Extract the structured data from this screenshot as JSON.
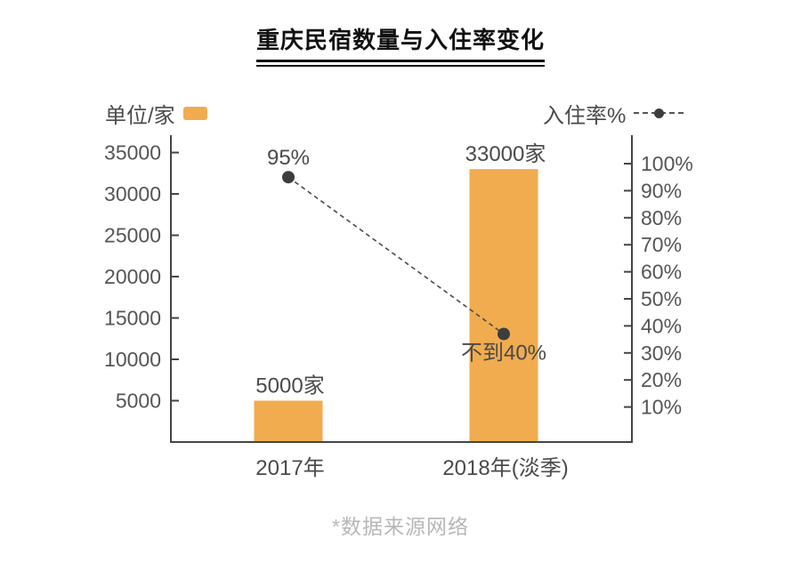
{
  "title": "重庆民宿数量与入住率变化",
  "legend": {
    "bar": {
      "label": "单位/家"
    },
    "line": {
      "label": "入住率%"
    }
  },
  "footer_note": "*数据来源网络",
  "colors": {
    "bar": "#f0ac4f",
    "marker": "#3d3d3d",
    "dashed_line": "#4a4a4a",
    "axis_line": "#454545",
    "tick_text": "#555555",
    "category_text": "#4a4a4a",
    "data_label_text": "#4a4a4a",
    "title_text": "#111111",
    "footer_text": "#b7b7b7"
  },
  "chart_data": {
    "type": "bar",
    "subtype": "dual-axis-combo-bar-line",
    "title": "重庆民宿数量与入住率变化",
    "categories": [
      "2017年",
      "2018年(淡季)"
    ],
    "series": [
      {
        "name": "单位/家",
        "type": "bar",
        "axis": "left",
        "values": [
          5000,
          33000
        ],
        "value_labels": [
          "5000家",
          "33000家"
        ],
        "color": "#f0ac4f"
      },
      {
        "name": "入住率%",
        "type": "line",
        "axis": "right",
        "values": [
          95,
          37
        ],
        "value_labels": [
          "95%",
          "不到40%"
        ],
        "value_label_positions": [
          "above",
          "below"
        ],
        "line_style": "dashed",
        "color": "#3d3d3d"
      }
    ],
    "left_axis": {
      "tick_labels": [
        "5000",
        "10000",
        "15000",
        "20000",
        "25000",
        "30000",
        "35000"
      ],
      "tick_values": [
        5000,
        10000,
        15000,
        20000,
        25000,
        30000,
        35000
      ],
      "min": 0,
      "max": 37100
    },
    "right_axis": {
      "tick_labels": [
        "10%",
        "20%",
        "30%",
        "40%",
        "50%",
        "60%",
        "70%",
        "80%",
        "90%",
        "100%"
      ],
      "tick_values": [
        10,
        20,
        30,
        40,
        50,
        60,
        70,
        80,
        90,
        100
      ]
    },
    "grid": false,
    "legend_position": "top",
    "source_note": "*数据来源网络"
  }
}
